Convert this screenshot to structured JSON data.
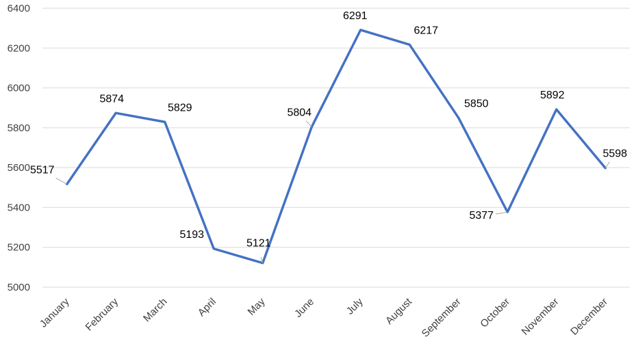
{
  "chart_data": {
    "type": "line",
    "title": "",
    "xlabel": "",
    "ylabel": "",
    "categories": [
      "January",
      "February",
      "March",
      "April",
      "May",
      "June",
      "July",
      "August",
      "September",
      "October",
      "November",
      "December"
    ],
    "series": [
      {
        "values": [
          5517,
          5874,
          5829,
          5193,
          5121,
          5804,
          6291,
          6217,
          5850,
          5377,
          5892,
          5598
        ],
        "color": "#4472c4"
      }
    ],
    "ylim": [
      5000,
      6400
    ],
    "yticks": [
      5000,
      5200,
      5400,
      5600,
      5800,
      6000,
      6200,
      6400
    ],
    "grid": true,
    "legend": "none"
  }
}
